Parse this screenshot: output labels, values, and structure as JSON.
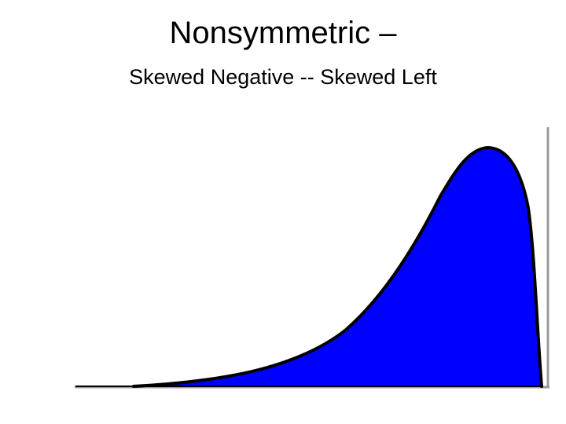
{
  "slide": {
    "title": "Nonsymmetric –",
    "subtitle": "Skewed Negative -- Skewed Left"
  },
  "diagram": {
    "shape": "left-skewed distribution curve",
    "fill_color": "#0000ff",
    "outline_color": "#000000",
    "axis_color": "#9a9a9a",
    "background_color": "#ffffff"
  }
}
